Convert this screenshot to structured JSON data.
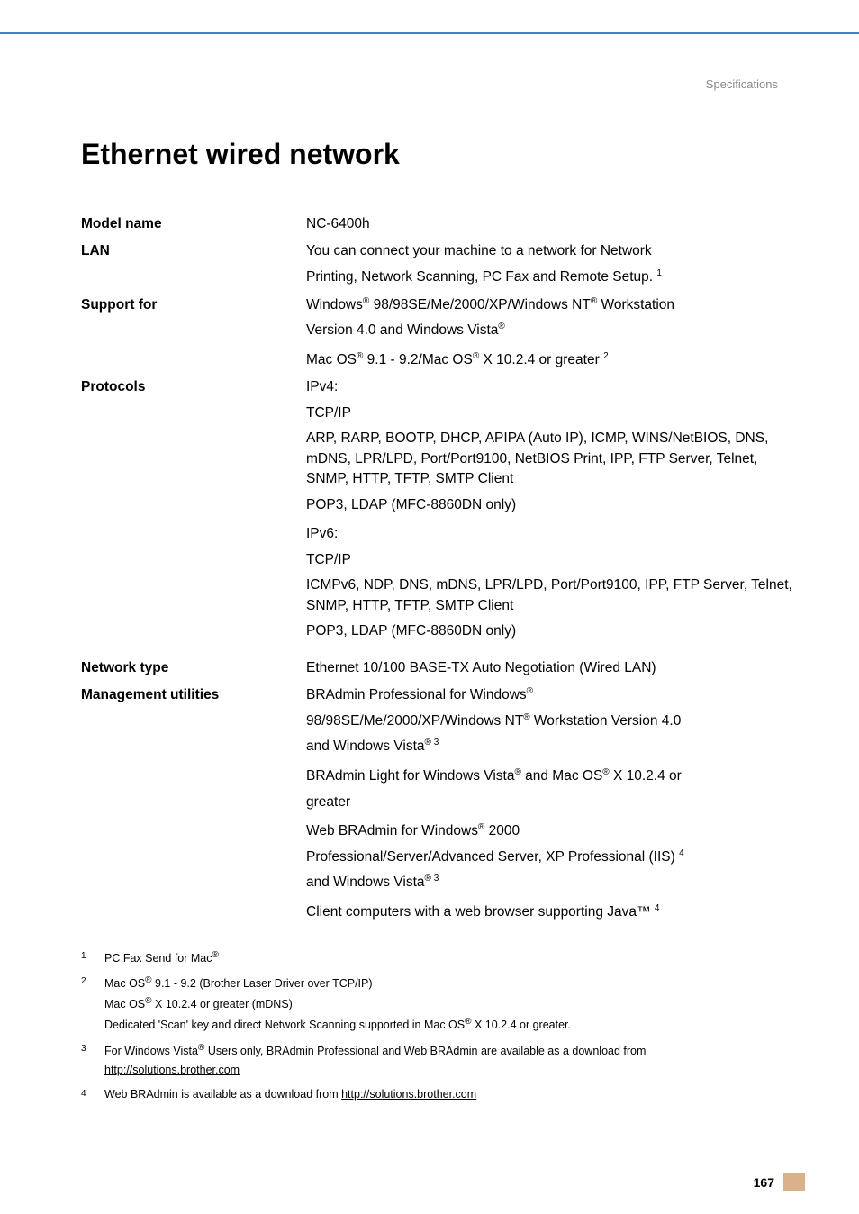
{
  "header": {
    "section": "Specifications"
  },
  "title": "Ethernet wired network",
  "rows": {
    "model_name": {
      "label": "Model name",
      "value": "NC-6400h"
    },
    "lan": {
      "label": "LAN",
      "line1a": "You can connect your machine to a network for Network",
      "line1b": "Printing, Network Scanning, PC Fax and Remote Setup. ",
      "sup1": "1"
    },
    "support": {
      "label": "Support for",
      "win_a": "Windows",
      "win_b": " 98/98SE/Me/2000/XP/Windows NT",
      "win_c": " Workstation",
      "win_d": "Version 4.0 and Windows Vista",
      "mac_a": "Mac OS",
      "mac_b": " 9.1 - 9.2/Mac OS",
      "mac_c": " X 10.2.4 or greater ",
      "sup2": "2"
    },
    "protocols": {
      "label": "Protocols",
      "ipv4": "IPv4:",
      "tcpip": "TCP/IP",
      "ipv4_list": "ARP, RARP, BOOTP, DHCP, APIPA (Auto IP), ICMP, WINS/NetBIOS, DNS, mDNS, LPR/LPD, Port/Port9100, NetBIOS Print, IPP, FTP Server, Telnet, SNMP, HTTP, TFTP, SMTP Client",
      "ipv4_pop": "POP3, LDAP (MFC-8860DN only)",
      "ipv6": "IPv6:",
      "ipv6_list": "ICMPv6, NDP, DNS, mDNS, LPR/LPD, Port/Port9100, IPP, FTP Server, Telnet, SNMP, HTTP, TFTP, SMTP Client",
      "ipv6_pop": "POP3, LDAP (MFC-8860DN only)"
    },
    "network_type": {
      "label": "Network type",
      "value": "Ethernet 10/100 BASE-TX Auto Negotiation (Wired LAN)"
    },
    "mgmt": {
      "label": "Management utilities",
      "bradmin_pro_a": "BRAdmin Professional for Windows",
      "bradmin_pro_b": "98/98SE/Me/2000/XP/Windows NT",
      "bradmin_pro_c": " Workstation Version 4.0",
      "bradmin_pro_d": "and Windows Vista",
      "sup3": "3",
      "bradmin_light_a": "BRAdmin Light for Windows Vista",
      "bradmin_light_b": " and Mac OS",
      "bradmin_light_c": " X 10.2.4 or",
      "bradmin_light_d": "greater",
      "web_a": "Web BRAdmin for Windows",
      "web_b": " 2000",
      "web_c": "Professional/Server/Advanced Server, XP Professional (IIS) ",
      "sup4": "4",
      "web_d": "and Windows Vista",
      "client_a": "Client computers with a web browser supporting Java™ "
    }
  },
  "footnotes": {
    "f1": {
      "num": "1",
      "text_a": "PC Fax Send for Mac"
    },
    "f2": {
      "num": "2",
      "l1a": "Mac OS",
      "l1b": " 9.1 - 9.2 (Brother Laser Driver over TCP/IP)",
      "l2a": "Mac OS",
      "l2b": " X 10.2.4 or greater (mDNS)",
      "l3a": "Dedicated 'Scan' key and direct Network Scanning supported in Mac OS",
      "l3b": " X 10.2.4 or greater."
    },
    "f3": {
      "num": "3",
      "text_a": "For Windows Vista",
      "text_b": " Users only, BRAdmin Professional and Web BRAdmin are available as a download from ",
      "link": "http://solutions.brother.com"
    },
    "f4": {
      "num": "4",
      "text_a": "Web BRAdmin is available as a download from ",
      "link": "http://solutions.brother.com"
    }
  },
  "page_number": "167",
  "colors": {
    "rule": "#4a7ebb",
    "header_text": "#888888",
    "tab": "#d9b28c"
  },
  "reg_mark": "®"
}
